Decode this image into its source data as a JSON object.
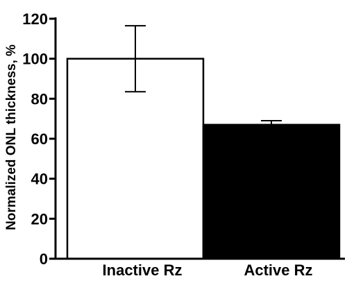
{
  "chart_data": {
    "type": "bar",
    "categories": [
      "Inactive Rz",
      "Active Rz"
    ],
    "values": [
      100,
      67
    ],
    "error": [
      16.5,
      2
    ],
    "bar_fill": [
      "#ffffff",
      "#000000"
    ],
    "bar_stroke": "#000000",
    "title": "",
    "xlabel": "",
    "ylabel": "Normalized ONL thickness, %",
    "ylim": [
      0,
      120
    ],
    "yticks": [
      0,
      20,
      40,
      60,
      80,
      100,
      120
    ],
    "grid": false,
    "legend": "none"
  }
}
